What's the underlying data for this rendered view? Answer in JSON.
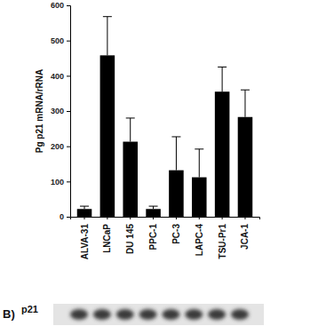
{
  "chart_data": {
    "type": "bar",
    "y_label": "Pg p21 mRNA/rRNA",
    "categories": [
      "ALVA-31",
      "LNCaP",
      "DU 145",
      "PPC-1",
      "PC-3",
      "LAPC-4",
      "TSU-Pr1",
      "JCA-1"
    ],
    "values": [
      22,
      458,
      213,
      22,
      132,
      112,
      355,
      283
    ],
    "errors": [
      8,
      110,
      67,
      8,
      95,
      80,
      70,
      77
    ],
    "color": "#000000",
    "ylim": [
      0,
      600
    ],
    "yticks": [
      0,
      100,
      200,
      300,
      400,
      500,
      600
    ],
    "grid": false
  },
  "panel_b": {
    "label": "B)",
    "row_label": "p21"
  }
}
